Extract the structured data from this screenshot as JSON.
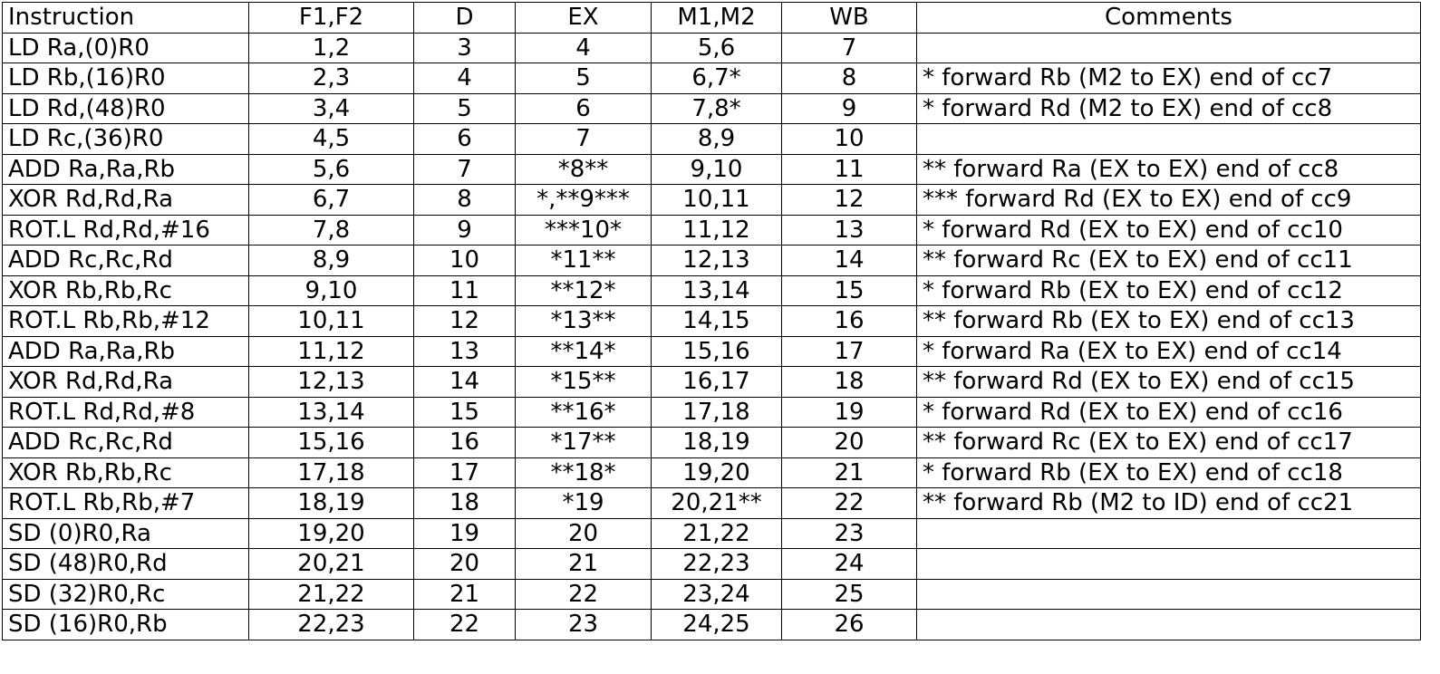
{
  "headers": {
    "instruction": "Instruction",
    "f": "F1,F2",
    "d": "D",
    "ex": "EX",
    "m": "M1,M2",
    "wb": "WB",
    "comments": "Comments"
  },
  "rows": [
    {
      "instr": "LD Ra,(0)R0",
      "f": "1,2",
      "d": "3",
      "ex": "4",
      "m": "5,6",
      "wb": "7",
      "comment": ""
    },
    {
      "instr": "LD Rb,(16)R0",
      "f": "2,3",
      "d": "4",
      "ex": "5",
      "m": "6,7*",
      "wb": "8",
      "comment": "* forward Rb (M2 to EX) end of cc7"
    },
    {
      "instr": "LD Rd,(48)R0",
      "f": "3,4",
      "d": "5",
      "ex": "6",
      "m": "7,8*",
      "wb": "9",
      "comment": "* forward Rd (M2 to EX) end of cc8"
    },
    {
      "instr": "LD Rc,(36)R0",
      "f": "4,5",
      "d": "6",
      "ex": "7",
      "m": "8,9",
      "wb": "10",
      "comment": ""
    },
    {
      "instr": "ADD Ra,Ra,Rb",
      "f": "5,6",
      "d": "7",
      "ex": "*8**",
      "m": "9,10",
      "wb": "11",
      "comment": "** forward Ra (EX to EX) end of cc8"
    },
    {
      "instr": "XOR Rd,Rd,Ra",
      "f": "6,7",
      "d": "8",
      "ex": "*,**9***",
      "m": "10,11",
      "wb": "12",
      "comment": "*** forward Rd (EX to EX) end of cc9"
    },
    {
      "instr": "ROT.L Rd,Rd,#16",
      "f": "7,8",
      "d": "9",
      "ex": "***10*",
      "m": "11,12",
      "wb": "13",
      "comment": "* forward Rd (EX to EX) end of cc10"
    },
    {
      "instr": "ADD Rc,Rc,Rd",
      "f": "8,9",
      "d": "10",
      "ex": "*11**",
      "m": "12,13",
      "wb": "14",
      "comment": "** forward Rc (EX to EX) end of cc11"
    },
    {
      "instr": "XOR Rb,Rb,Rc",
      "f": "9,10",
      "d": "11",
      "ex": "**12*",
      "m": "13,14",
      "wb": "15",
      "comment": "* forward Rb (EX to EX) end of cc12"
    },
    {
      "instr": "ROT.L Rb,Rb,#12",
      "f": "10,11",
      "d": "12",
      "ex": "*13**",
      "m": "14,15",
      "wb": "16",
      "comment": "** forward Rb (EX to EX) end of cc13"
    },
    {
      "instr": "ADD Ra,Ra,Rb",
      "f": "11,12",
      "d": "13",
      "ex": "**14*",
      "m": "15,16",
      "wb": "17",
      "comment": "* forward Ra (EX to EX) end of cc14"
    },
    {
      "instr": "XOR Rd,Rd,Ra",
      "f": "12,13",
      "d": "14",
      "ex": "*15**",
      "m": "16,17",
      "wb": "18",
      "comment": "** forward Rd (EX to EX) end of cc15"
    },
    {
      "instr": "ROT.L Rd,Rd,#8",
      "f": "13,14",
      "d": "15",
      "ex": "**16*",
      "m": "17,18",
      "wb": "19",
      "comment": "* forward Rd (EX to EX) end of cc16"
    },
    {
      "instr": "ADD Rc,Rc,Rd",
      "f": "15,16",
      "d": "16",
      "ex": "*17**",
      "m": "18,19",
      "wb": "20",
      "comment": "** forward Rc (EX to EX) end of cc17"
    },
    {
      "instr": "XOR Rb,Rb,Rc",
      "f": "17,18",
      "d": "17",
      "ex": "**18*",
      "m": "19,20",
      "wb": "21",
      "comment": "* forward Rb (EX to EX) end of cc18"
    },
    {
      "instr": "ROT.L Rb,Rb,#7",
      "f": "18,19",
      "d": "18",
      "ex": "*19",
      "m": "20,21**",
      "wb": "22",
      "comment": "** forward Rb (M2 to ID) end of cc21"
    },
    {
      "instr": "SD (0)R0,Ra",
      "f": "19,20",
      "d": "19",
      "ex": "20",
      "m": "21,22",
      "wb": "23",
      "comment": ""
    },
    {
      "instr": "SD (48)R0,Rd",
      "f": "20,21",
      "d": "20",
      "ex": "21",
      "m": "22,23",
      "wb": "24",
      "comment": ""
    },
    {
      "instr": "SD (32)R0,Rc",
      "f": "21,22",
      "d": "21",
      "ex": "22",
      "m": "23,24",
      "wb": "25",
      "comment": ""
    },
    {
      "instr": "SD (16)R0,Rb",
      "f": "22,23",
      "d": "22",
      "ex": "23",
      "m": "24,25",
      "wb": "26",
      "comment": ""
    }
  ]
}
